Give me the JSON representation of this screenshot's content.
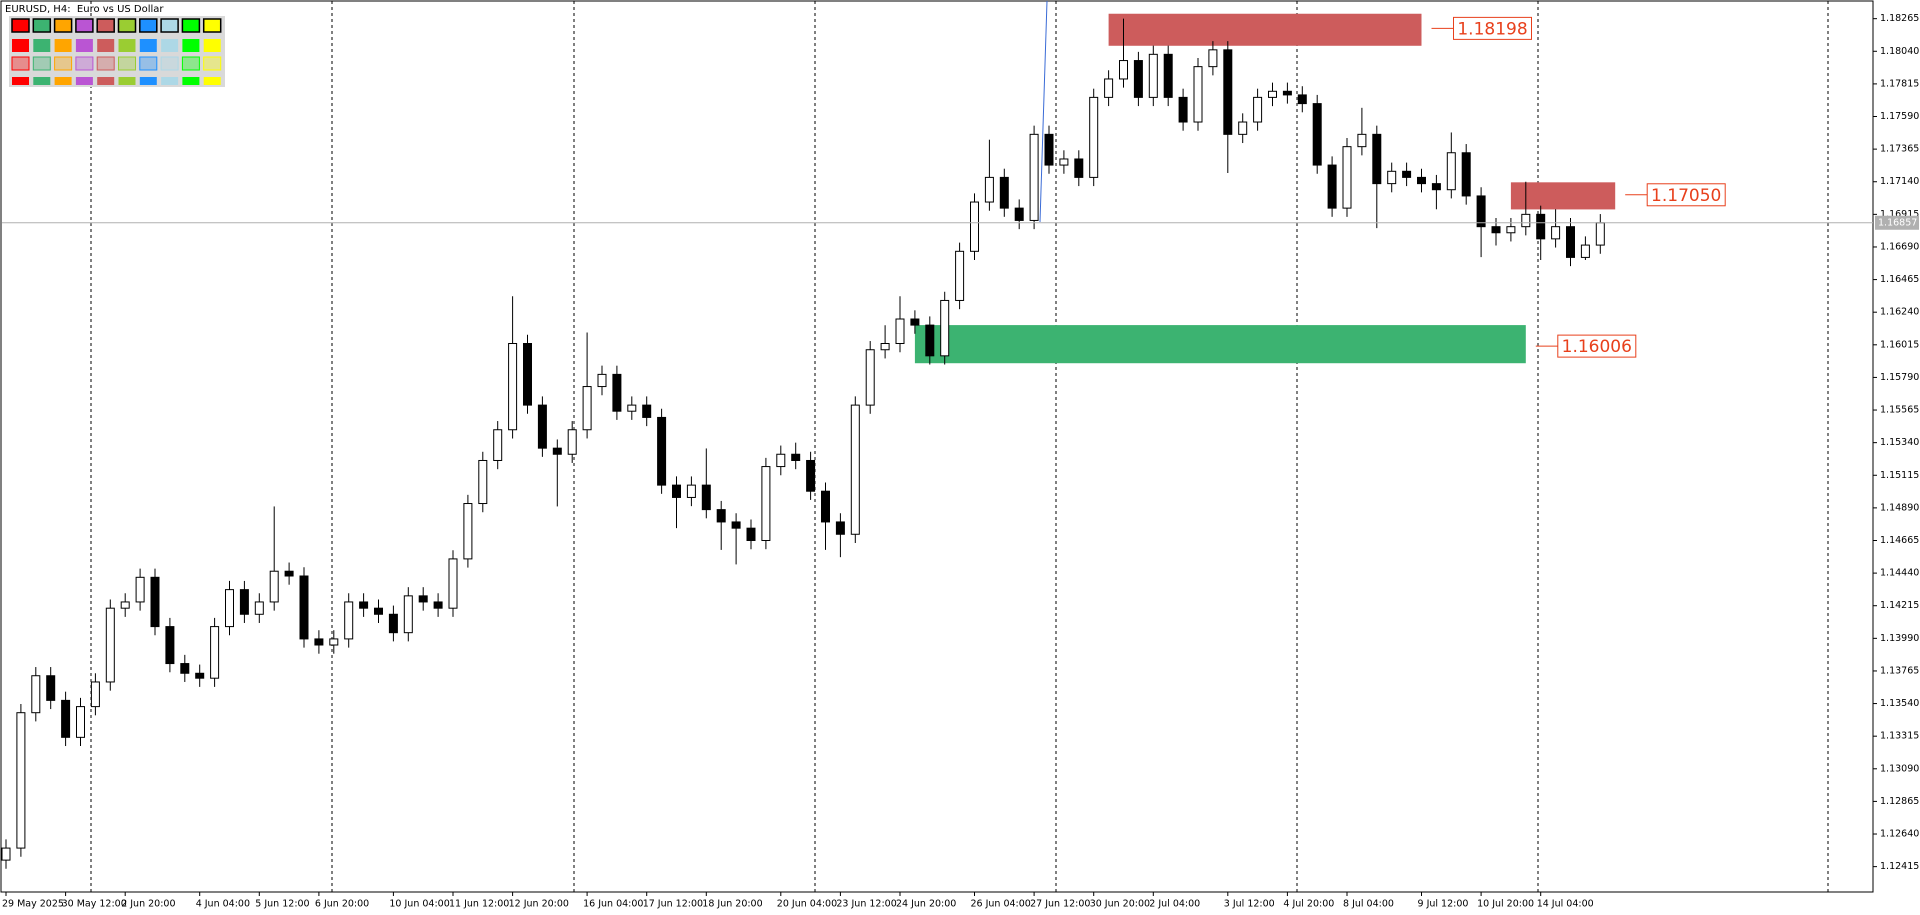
{
  "chart_data": {
    "type": "candlestick",
    "title": "EURUSD, H4:  Euro vs US Dollar",
    "categories": [
      "29 May 2025",
      null,
      null,
      null,
      "30 May 12:00",
      null,
      null,
      null,
      "2 Jun 20:00",
      null,
      null,
      null,
      null,
      "4 Jun 04:00",
      null,
      null,
      null,
      "5 Jun 12:00",
      null,
      null,
      null,
      "6 Jun 20:00",
      null,
      null,
      null,
      null,
      "10 Jun 04:00",
      null,
      null,
      null,
      "11 Jun 12:00",
      null,
      null,
      null,
      "12 Jun 20:00",
      null,
      null,
      null,
      null,
      "16 Jun 04:00",
      null,
      null,
      null,
      "17 Jun 12:00",
      null,
      null,
      null,
      "18 Jun 20:00",
      null,
      null,
      null,
      null,
      "20 Jun 04:00",
      null,
      null,
      null,
      "23 Jun 12:00",
      null,
      null,
      null,
      "24 Jun 20:00",
      null,
      null,
      null,
      null,
      "26 Jun 04:00",
      null,
      null,
      null,
      "27 Jun 12:00",
      null,
      null,
      null,
      "30 Jun 20:00",
      null,
      null,
      null,
      "2 Jul 04:00",
      null,
      null,
      null,
      null,
      "3 Jul 12:00",
      null,
      null,
      null,
      "4 Jul 20:00",
      null,
      null,
      null,
      "8 Jul 04:00",
      null,
      null,
      null,
      null,
      "9 Jul 12:00",
      null,
      null,
      null,
      "10 Jul 20:00",
      null,
      null,
      null,
      "14 Jul 04:00",
      null,
      null,
      null,
      null
    ],
    "open": [
      1.1246,
      1.12543,
      1.13477,
      1.13732,
      1.13562,
      1.13307,
      1.13519,
      1.13689,
      1.14198,
      1.14241,
      1.14411,
      1.14071,
      1.13816,
      1.13749,
      1.13715,
      1.14071,
      1.14326,
      1.14156,
      1.14241,
      1.14453,
      1.1442,
      1.13986,
      1.13944,
      1.13986,
      1.14241,
      1.14198,
      1.14156,
      1.14029,
      1.14283,
      1.14241,
      1.14198,
      1.14538,
      1.1492,
      1.15217,
      1.15429,
      1.16024,
      1.15599,
      1.15302,
      1.1526,
      1.15429,
      1.15727,
      1.15811,
      1.15557,
      1.15599,
      1.15514,
      1.15047,
      1.14962,
      1.15047,
      1.14878,
      1.14793,
      1.1475,
      1.14665,
      1.15175,
      1.1526,
      1.15217,
      1.15005,
      1.14793,
      1.14708,
      1.15599,
      1.15981,
      1.16024,
      1.16193,
      1.16151,
      1.15939,
      1.16321,
      1.1666,
      1.17,
      1.1717,
      1.16958,
      1.16873,
      1.17467,
      1.17255,
      1.17297,
      1.1717,
      1.17722,
      1.17849,
      1.17976,
      1.17722,
      1.18019,
      1.17722,
      1.17552,
      1.17934,
      1.1805,
      1.17467,
      1.17552,
      1.17722,
      1.17764,
      1.17739,
      1.17679,
      1.17255,
      1.16958,
      1.17382,
      1.17467,
      1.17127,
      1.17212,
      1.1717,
      1.17127,
      1.17085,
      1.1734,
      1.17042,
      1.1683,
      1.16788,
      1.1683,
      1.16915,
      1.16746,
      1.1683,
      1.16618,
      1.16703
    ],
    "high": [
      1.12603,
      1.13537,
      1.13792,
      1.13792,
      1.13622,
      1.13579,
      1.13749,
      1.14258,
      1.14301,
      1.14471,
      1.14471,
      1.14131,
      1.13876,
      1.13809,
      1.14131,
      1.14386,
      1.14386,
      1.14301,
      1.149,
      1.14513,
      1.1448,
      1.14046,
      1.14046,
      1.14301,
      1.14301,
      1.14258,
      1.14216,
      1.14343,
      1.14343,
      1.14301,
      1.14598,
      1.1498,
      1.15277,
      1.15489,
      1.1635,
      1.16084,
      1.15659,
      1.15362,
      1.15489,
      1.161,
      1.15871,
      1.15871,
      1.15659,
      1.15659,
      1.15574,
      1.15107,
      1.15107,
      1.153,
      1.14938,
      1.14853,
      1.1481,
      1.15235,
      1.1532,
      1.1534,
      1.15277,
      1.15065,
      1.14853,
      1.15659,
      1.16041,
      1.1615,
      1.1635,
      1.16253,
      1.16211,
      1.16381,
      1.1672,
      1.1706,
      1.1743,
      1.1723,
      1.17018,
      1.17527,
      1.17527,
      1.17357,
      1.17357,
      1.17782,
      1.17909,
      1.18265,
      1.18036,
      1.18079,
      1.18079,
      1.17782,
      1.17994,
      1.1811,
      1.1811,
      1.17612,
      1.17782,
      1.17824,
      1.17824,
      1.17799,
      1.17739,
      1.17315,
      1.17442,
      1.1765,
      1.17527,
      1.17272,
      1.17272,
      1.1723,
      1.17187,
      1.1748,
      1.174,
      1.17102,
      1.1689,
      1.1689,
      1.1714,
      1.16975,
      1.1695,
      1.1689,
      1.16763,
      1.16917
    ],
    "low": [
      1.124,
      1.12483,
      1.13417,
      1.13502,
      1.13247,
      1.13247,
      1.13459,
      1.13629,
      1.14138,
      1.14181,
      1.14011,
      1.13756,
      1.13689,
      1.13655,
      1.13655,
      1.14011,
      1.14096,
      1.14096,
      1.14181,
      1.1436,
      1.13926,
      1.13884,
      1.13884,
      1.13926,
      1.14138,
      1.14096,
      1.13969,
      1.13969,
      1.14181,
      1.14138,
      1.14138,
      1.14478,
      1.1486,
      1.15157,
      1.15369,
      1.15539,
      1.15242,
      1.149,
      1.152,
      1.15369,
      1.15667,
      1.15497,
      1.15497,
      1.15454,
      1.14987,
      1.1475,
      1.14902,
      1.14818,
      1.146,
      1.145,
      1.14605,
      1.14605,
      1.15115,
      1.15157,
      1.14945,
      1.146,
      1.1455,
      1.14648,
      1.15539,
      1.15921,
      1.15964,
      1.16091,
      1.15879,
      1.15879,
      1.16261,
      1.166,
      1.1694,
      1.16898,
      1.16813,
      1.16813,
      1.17195,
      1.17195,
      1.1711,
      1.1711,
      1.17662,
      1.17789,
      1.17662,
      1.17662,
      1.17662,
      1.17492,
      1.17492,
      1.17874,
      1.172,
      1.17407,
      1.17492,
      1.17662,
      1.17679,
      1.17619,
      1.17195,
      1.16898,
      1.16898,
      1.17322,
      1.1682,
      1.17067,
      1.1711,
      1.17067,
      1.1695,
      1.17025,
      1.16982,
      1.1662,
      1.167,
      1.16728,
      1.1677,
      1.166,
      1.16686,
      1.16558,
      1.166,
      1.16643
    ],
    "close": [
      1.12543,
      1.13477,
      1.13732,
      1.13562,
      1.13307,
      1.13519,
      1.13689,
      1.14198,
      1.14241,
      1.14411,
      1.14071,
      1.13816,
      1.13749,
      1.13715,
      1.14071,
      1.14326,
      1.14156,
      1.14241,
      1.14453,
      1.1442,
      1.13986,
      1.13944,
      1.13986,
      1.14241,
      1.14198,
      1.14156,
      1.14029,
      1.14283,
      1.14241,
      1.14198,
      1.14538,
      1.1492,
      1.15217,
      1.15429,
      1.16024,
      1.15599,
      1.15302,
      1.1526,
      1.15429,
      1.15727,
      1.15811,
      1.15557,
      1.15599,
      1.15514,
      1.15047,
      1.14962,
      1.15047,
      1.14878,
      1.14793,
      1.1475,
      1.14665,
      1.15175,
      1.1526,
      1.15217,
      1.15005,
      1.14793,
      1.14708,
      1.15599,
      1.15981,
      1.16024,
      1.16193,
      1.16151,
      1.15939,
      1.16321,
      1.1666,
      1.17,
      1.1717,
      1.16958,
      1.16873,
      1.17467,
      1.17255,
      1.17297,
      1.1717,
      1.17722,
      1.17849,
      1.17976,
      1.17722,
      1.18019,
      1.17722,
      1.17552,
      1.17934,
      1.1805,
      1.17467,
      1.17552,
      1.17722,
      1.17764,
      1.17739,
      1.17679,
      1.17255,
      1.16958,
      1.17382,
      1.17467,
      1.17127,
      1.17212,
      1.1717,
      1.17127,
      1.17085,
      1.1734,
      1.17042,
      1.1683,
      1.16788,
      1.1683,
      1.16915,
      1.16746,
      1.1683,
      1.16618,
      1.16703,
      1.16857
    ],
    "up_color": "#ffffff",
    "down_color": "#000000",
    "wick_color": "#000000",
    "ylim": [
      1.1224,
      1.1838
    ],
    "yticks": [
      1.18265,
      {
        "value": 1.1804,
        "label": "1.18040"
      },
      1.17815,
      {
        "value": 1.1759,
        "label": "1.17590"
      },
      1.17365,
      {
        "value": 1.1714,
        "label": "1.17140"
      },
      1.16915,
      {
        "value": 1.1669,
        "label": "1.16690"
      },
      1.16465,
      {
        "value": 1.1624,
        "label": "1.16240"
      },
      1.16015,
      {
        "value": 1.1579,
        "label": "1.15790"
      },
      1.15565,
      {
        "value": 1.1534,
        "label": "1.15340"
      },
      1.15115,
      {
        "value": 1.1489,
        "label": "1.14890"
      },
      1.14665,
      {
        "value": 1.1444,
        "label": "1.14440"
      },
      1.14215,
      {
        "value": 1.1399,
        "label": "1.13990"
      },
      1.13765,
      {
        "value": 1.1354,
        "label": "1.13540"
      },
      1.13315,
      {
        "value": 1.1309,
        "label": "1.13090"
      },
      1.12865,
      {
        "value": 1.1264,
        "label": "1.12640"
      },
      1.12415
    ],
    "current_price": 1.16857,
    "zones": [
      {
        "top": 1.18299,
        "bottom": 1.18078,
        "level": 1.18198,
        "start": 74,
        "end": 95,
        "color": "#cd5c5c"
      },
      {
        "top": 1.17136,
        "bottom": 1.16949,
        "level": 1.1705,
        "level_label": "1.17050",
        "start": 101,
        "end": 108,
        "color": "#cd5c5c"
      },
      {
        "top": 1.16151,
        "bottom": 1.15888,
        "level": 1.16006,
        "start": 61,
        "end": 102,
        "color": "#3cb371"
      }
    ]
  }
}
